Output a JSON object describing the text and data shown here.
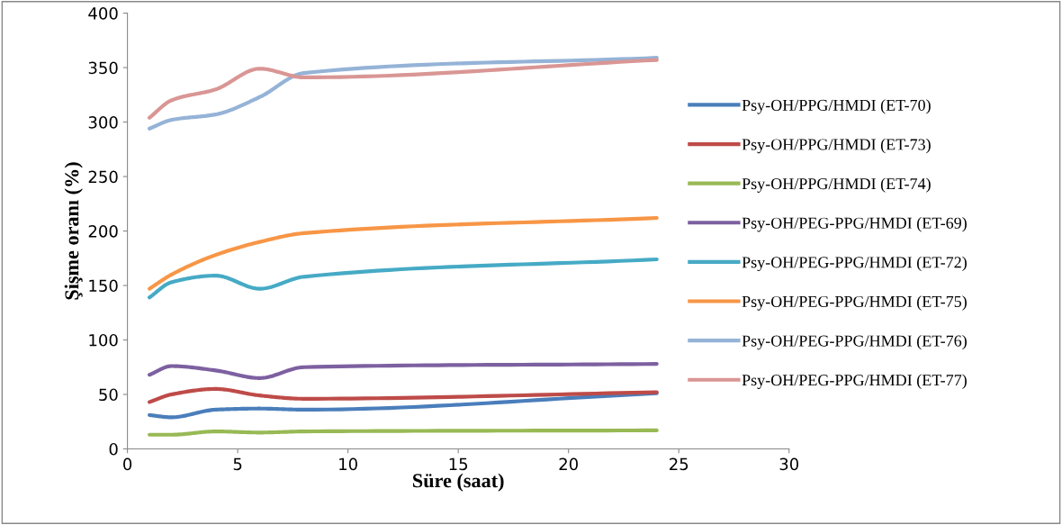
{
  "chart_data": {
    "type": "line",
    "xlabel": "Süre (saat)",
    "ylabel": "Şişme oranı (%)",
    "x": [
      1,
      2,
      4,
      6,
      8,
      24
    ],
    "xlim": [
      0,
      30
    ],
    "xticks": [
      0,
      5,
      10,
      15,
      20,
      25,
      30
    ],
    "ylim": [
      0,
      400
    ],
    "yticks": [
      0,
      50,
      100,
      150,
      200,
      250,
      300,
      350,
      400
    ],
    "grid": false,
    "legend": "right",
    "marker": "none",
    "line_style": "solid",
    "series": [
      {
        "name": "Psy-OH/PPG/HMDI (ET-70)",
        "color": "#4a7ebb",
        "values": [
          31,
          29,
          36,
          37,
          36,
          51
        ]
      },
      {
        "name": "Psy-OH/PPG/HMDI (ET-73)",
        "color": "#be4b48",
        "values": [
          43,
          50,
          55,
          49,
          46,
          52
        ]
      },
      {
        "name": "Psy-OH/PPG/HMDI (ET-74)",
        "color": "#98b954",
        "values": [
          13,
          13,
          16,
          15,
          16,
          17
        ]
      },
      {
        "name": "Psy-OH/PEG-PPG/HMDI (ET-69)",
        "color": "#7d60a0",
        "values": [
          68,
          76,
          72,
          65,
          75,
          78
        ]
      },
      {
        "name": "Psy-OH/PEG-PPG/HMDI (ET-72)",
        "color": "#46aac5",
        "values": [
          139,
          153,
          159,
          147,
          158,
          174
        ]
      },
      {
        "name": "Psy-OH/PEG-PPG/HMDI (ET-75)",
        "color": "#f79646",
        "values": [
          147,
          160,
          178,
          190,
          198,
          212
        ]
      },
      {
        "name": "Psy-OH/PEG-PPG/HMDI (ET-76)",
        "color": "#95b3d7",
        "values": [
          294,
          302,
          307,
          323,
          345,
          359
        ]
      },
      {
        "name": "Psy-OH/PEG-PPG/HMDI (ET-77)",
        "color": "#d99694",
        "values": [
          304,
          320,
          330,
          349,
          341,
          357
        ]
      }
    ]
  }
}
